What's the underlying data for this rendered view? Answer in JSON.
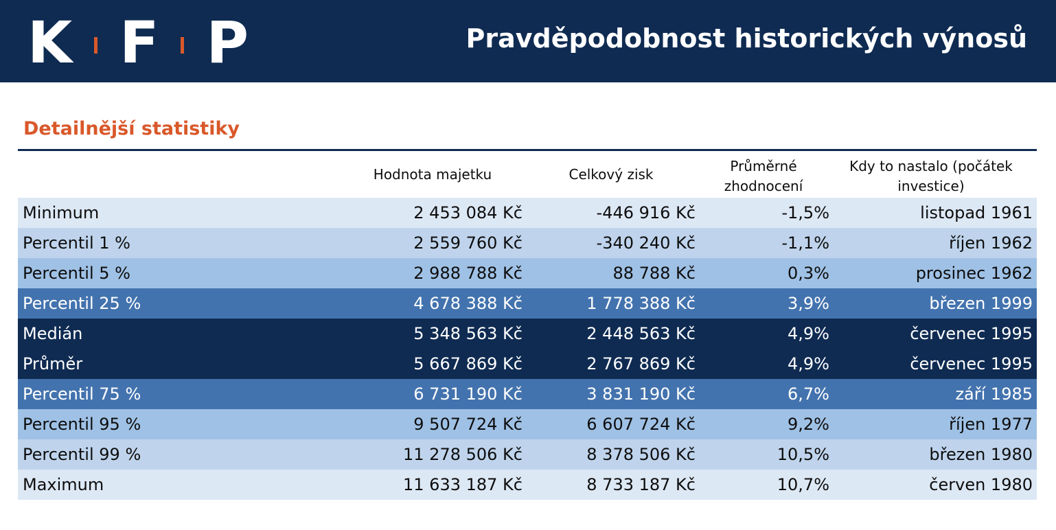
{
  "header": {
    "logo": [
      "K",
      "F",
      "P"
    ],
    "title": "Pravděpodobnost historických výnosů"
  },
  "section_title": "Detailnější statistiky",
  "table": {
    "columns": [
      "Hodnota majetku",
      "Celkový zisk",
      "Průměrné zhodnocení",
      "Kdy to nastalo (počátek investice)"
    ],
    "column_lines": [
      [
        "Hodnota majetku"
      ],
      [
        "Celkový zisk"
      ],
      [
        "Průměrné",
        "zhodnocení"
      ],
      [
        "Kdy to nastalo (počátek",
        "investice)"
      ]
    ],
    "rows": [
      {
        "label": "Minimum",
        "value": "2 453 084 Kč",
        "profit": "-446 916 Kč",
        "avg": "-1,5%",
        "when": "listopad 1961"
      },
      {
        "label": "Percentil 1 %",
        "value": "2 559 760 Kč",
        "profit": "-340 240 Kč",
        "avg": "-1,1%",
        "when": "říjen 1962"
      },
      {
        "label": "Percentil 5 %",
        "value": "2 988 788 Kč",
        "profit": "88 788 Kč",
        "avg": "0,3%",
        "when": "prosinec 1962"
      },
      {
        "label": "Percentil 25 %",
        "value": "4 678 388 Kč",
        "profit": "1 778 388 Kč",
        "avg": "3,9%",
        "when": "březen 1999"
      },
      {
        "label": "Medián",
        "value": "5 348 563 Kč",
        "profit": "2 448 563 Kč",
        "avg": "4,9%",
        "when": "červenec 1995"
      },
      {
        "label": "Průměr",
        "value": "5 667 869 Kč",
        "profit": "2 767 869 Kč",
        "avg": "4,9%",
        "when": "červenec 1995"
      },
      {
        "label": "Percentil 75 %",
        "value": "6 731 190 Kč",
        "profit": "3 831 190 Kč",
        "avg": "6,7%",
        "when": "září 1985"
      },
      {
        "label": "Percentil 95 %",
        "value": "9 507 724 Kč",
        "profit": "6 607 724 Kč",
        "avg": "9,2%",
        "when": "říjen 1977"
      },
      {
        "label": "Percentil 99 %",
        "value": "11 278 506 Kč",
        "profit": "8 378 506 Kč",
        "avg": "10,5%",
        "when": "březen 1980"
      },
      {
        "label": "Maximum",
        "value": "11 633 187 Kč",
        "profit": "8 733 187 Kč",
        "avg": "10,7%",
        "when": "červen 1980"
      }
    ]
  },
  "colors": {
    "navy": "#0f2b52",
    "accent_orange": "#d9582a",
    "row_light": "#dde8f5",
    "row_mid": "#bfd4ec",
    "row_blue": "#9fc1e5",
    "row_strong": "#4373ae"
  }
}
